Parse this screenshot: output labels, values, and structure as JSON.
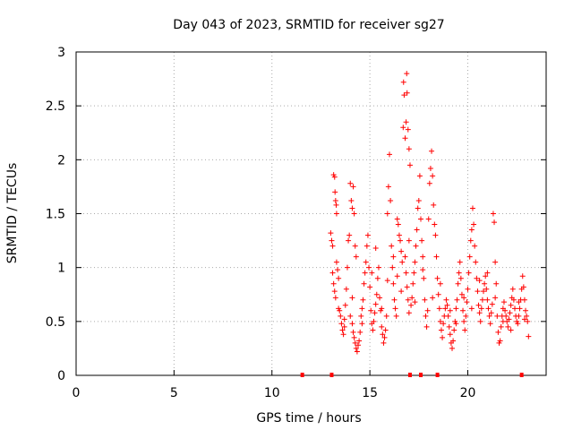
{
  "chart_data": {
    "type": "scatter",
    "title": "Day 043 of 2023, SRMTID for receiver sg27",
    "xlabel": "GPS time / hours",
    "ylabel": "SRMTID / TECUs",
    "xlim": [
      0,
      24
    ],
    "ylim": [
      0,
      3
    ],
    "x_ticks": [
      "0",
      "5",
      "10",
      "15",
      "20"
    ],
    "y_ticks": [
      "0",
      "0.5",
      "1",
      "1.5",
      "2",
      "2.5",
      "3"
    ],
    "grid": true,
    "marker": "+",
    "colors": {
      "series": "#ff0000",
      "grid": "#aaaaaa",
      "axis": "#000000"
    },
    "baseline_marks_x": [
      11.55,
      13.05,
      17.05,
      17.6,
      18.45,
      22.75
    ],
    "series": [
      {
        "name": "SRMTID",
        "points": [
          [
            13.0,
            1.32
          ],
          [
            13.05,
            1.25
          ],
          [
            13.1,
            1.2
          ],
          [
            13.15,
            1.86
          ],
          [
            13.2,
            1.84
          ],
          [
            13.22,
            1.7
          ],
          [
            13.25,
            1.62
          ],
          [
            13.28,
            1.58
          ],
          [
            13.3,
            1.5
          ],
          [
            13.1,
            0.95
          ],
          [
            13.15,
            0.85
          ],
          [
            13.2,
            0.78
          ],
          [
            13.25,
            0.72
          ],
          [
            13.3,
            1.05
          ],
          [
            13.35,
            0.98
          ],
          [
            13.4,
            0.9
          ],
          [
            13.45,
            0.6
          ],
          [
            13.5,
            0.55
          ],
          [
            13.55,
            0.48
          ],
          [
            13.6,
            0.42
          ],
          [
            13.65,
            0.38
          ],
          [
            13.7,
            0.52
          ],
          [
            13.75,
            0.65
          ],
          [
            13.8,
            0.8
          ],
          [
            13.85,
            1.0
          ],
          [
            13.9,
            1.25
          ],
          [
            13.95,
            1.3
          ],
          [
            14.0,
            1.78
          ],
          [
            14.05,
            1.62
          ],
          [
            14.1,
            1.55
          ],
          [
            14.15,
            1.75
          ],
          [
            14.2,
            1.5
          ],
          [
            14.25,
            1.2
          ],
          [
            14.3,
            1.1
          ],
          [
            14.0,
            0.55
          ],
          [
            14.1,
            0.48
          ],
          [
            14.15,
            0.4
          ],
          [
            14.2,
            0.35
          ],
          [
            14.25,
            0.3
          ],
          [
            14.3,
            0.25
          ],
          [
            14.35,
            0.22
          ],
          [
            14.4,
            0.28
          ],
          [
            14.45,
            0.32
          ],
          [
            14.5,
            0.4
          ],
          [
            14.55,
            0.55
          ],
          [
            14.6,
            0.62
          ],
          [
            14.65,
            0.7
          ],
          [
            14.7,
            0.85
          ],
          [
            14.75,
            0.95
          ],
          [
            14.8,
            1.05
          ],
          [
            14.85,
            1.2
          ],
          [
            14.9,
            1.3
          ],
          [
            14.95,
            1.0
          ],
          [
            15.0,
            0.82
          ],
          [
            15.05,
            0.6
          ],
          [
            15.1,
            0.48
          ],
          [
            15.15,
            0.42
          ],
          [
            15.2,
            0.5
          ],
          [
            15.25,
            0.58
          ],
          [
            15.3,
            0.66
          ],
          [
            15.35,
            0.75
          ],
          [
            15.4,
            0.9
          ],
          [
            15.45,
            1.0
          ],
          [
            15.5,
            0.72
          ],
          [
            15.55,
            0.6
          ],
          [
            15.6,
            0.45
          ],
          [
            15.65,
            0.38
          ],
          [
            15.7,
            0.3
          ],
          [
            15.75,
            0.35
          ],
          [
            15.8,
            0.42
          ],
          [
            15.85,
            0.55
          ],
          [
            15.9,
            1.5
          ],
          [
            15.95,
            1.75
          ],
          [
            16.0,
            2.05
          ],
          [
            16.05,
            1.62
          ],
          [
            16.1,
            1.2
          ],
          [
            16.15,
            1.0
          ],
          [
            16.2,
            0.85
          ],
          [
            16.25,
            0.7
          ],
          [
            16.3,
            0.62
          ],
          [
            16.35,
            0.55
          ],
          [
            16.4,
            1.45
          ],
          [
            16.45,
            1.4
          ],
          [
            16.5,
            1.3
          ],
          [
            16.55,
            1.25
          ],
          [
            16.6,
            1.15
          ],
          [
            16.65,
            1.05
          ],
          [
            16.7,
            2.3
          ],
          [
            16.72,
            2.72
          ],
          [
            16.75,
            2.6
          ],
          [
            16.8,
            2.2
          ],
          [
            16.85,
            2.35
          ],
          [
            16.88,
            2.8
          ],
          [
            16.9,
            2.62
          ],
          [
            16.95,
            2.28
          ],
          [
            17.0,
            2.1
          ],
          [
            17.05,
            1.95
          ],
          [
            16.8,
            1.1
          ],
          [
            16.85,
            0.95
          ],
          [
            16.9,
            0.82
          ],
          [
            16.95,
            0.7
          ],
          [
            17.0,
            0.58
          ],
          [
            17.1,
            0.65
          ],
          [
            17.15,
            0.72
          ],
          [
            17.2,
            0.85
          ],
          [
            17.25,
            0.95
          ],
          [
            17.3,
            1.05
          ],
          [
            17.35,
            1.2
          ],
          [
            17.4,
            1.35
          ],
          [
            17.45,
            1.55
          ],
          [
            17.5,
            1.62
          ],
          [
            17.55,
            1.85
          ],
          [
            17.6,
            1.45
          ],
          [
            17.65,
            1.25
          ],
          [
            17.7,
            1.1
          ],
          [
            17.75,
            0.9
          ],
          [
            17.8,
            0.7
          ],
          [
            17.85,
            0.55
          ],
          [
            17.9,
            0.45
          ],
          [
            17.95,
            0.6
          ],
          [
            18.0,
            1.45
          ],
          [
            18.05,
            1.78
          ],
          [
            18.1,
            1.92
          ],
          [
            18.15,
            2.08
          ],
          [
            18.2,
            1.85
          ],
          [
            18.25,
            1.58
          ],
          [
            18.3,
            1.4
          ],
          [
            18.35,
            1.3
          ],
          [
            18.4,
            1.1
          ],
          [
            18.45,
            0.9
          ],
          [
            18.5,
            0.75
          ],
          [
            18.55,
            0.62
          ],
          [
            18.6,
            0.5
          ],
          [
            18.65,
            0.42
          ],
          [
            18.7,
            0.35
          ],
          [
            18.75,
            0.48
          ],
          [
            18.8,
            0.55
          ],
          [
            18.85,
            0.62
          ],
          [
            18.9,
            0.7
          ],
          [
            18.95,
            0.65
          ],
          [
            19.0,
            0.55
          ],
          [
            19.05,
            0.45
          ],
          [
            19.1,
            0.38
          ],
          [
            19.15,
            0.3
          ],
          [
            19.2,
            0.25
          ],
          [
            19.25,
            0.32
          ],
          [
            19.3,
            0.42
          ],
          [
            19.35,
            0.5
          ],
          [
            19.4,
            0.62
          ],
          [
            19.45,
            0.7
          ],
          [
            19.5,
            0.85
          ],
          [
            19.55,
            0.95
          ],
          [
            19.6,
            1.05
          ],
          [
            19.65,
            0.9
          ],
          [
            19.7,
            0.75
          ],
          [
            19.75,
            0.6
          ],
          [
            19.8,
            0.5
          ],
          [
            19.85,
            0.42
          ],
          [
            19.9,
            0.55
          ],
          [
            19.95,
            0.68
          ],
          [
            20.0,
            0.8
          ],
          [
            20.05,
            0.95
          ],
          [
            20.1,
            1.1
          ],
          [
            20.15,
            1.25
          ],
          [
            20.2,
            1.35
          ],
          [
            20.25,
            1.55
          ],
          [
            20.3,
            1.4
          ],
          [
            20.35,
            1.2
          ],
          [
            20.4,
            1.05
          ],
          [
            20.45,
            0.9
          ],
          [
            20.5,
            0.78
          ],
          [
            20.55,
            0.65
          ],
          [
            20.6,
            0.58
          ],
          [
            20.65,
            0.5
          ],
          [
            20.7,
            0.62
          ],
          [
            20.75,
            0.7
          ],
          [
            20.8,
            0.78
          ],
          [
            20.85,
            0.85
          ],
          [
            20.9,
            0.92
          ],
          [
            20.95,
            0.8
          ],
          [
            21.0,
            0.7
          ],
          [
            21.05,
            0.62
          ],
          [
            21.1,
            0.55
          ],
          [
            21.15,
            0.48
          ],
          [
            21.2,
            0.58
          ],
          [
            21.25,
            0.66
          ],
          [
            21.3,
            1.5
          ],
          [
            21.35,
            1.42
          ],
          [
            21.4,
            1.05
          ],
          [
            21.45,
            0.85
          ],
          [
            21.5,
            0.55
          ],
          [
            21.55,
            0.4
          ],
          [
            21.6,
            0.3
          ],
          [
            21.65,
            0.32
          ],
          [
            21.7,
            0.45
          ],
          [
            21.75,
            0.55
          ],
          [
            21.8,
            0.62
          ],
          [
            21.85,
            0.68
          ],
          [
            21.9,
            0.6
          ],
          [
            21.95,
            0.55
          ],
          [
            22.0,
            0.5
          ],
          [
            22.05,
            0.45
          ],
          [
            22.1,
            0.52
          ],
          [
            22.15,
            0.58
          ],
          [
            22.2,
            0.65
          ],
          [
            22.25,
            0.72
          ],
          [
            22.3,
            0.8
          ],
          [
            22.35,
            0.7
          ],
          [
            22.4,
            0.62
          ],
          [
            22.45,
            0.55
          ],
          [
            22.5,
            0.5
          ],
          [
            22.55,
            0.48
          ],
          [
            22.6,
            0.55
          ],
          [
            22.65,
            0.62
          ],
          [
            22.7,
            0.7
          ],
          [
            22.75,
            0.8
          ],
          [
            22.8,
            0.92
          ],
          [
            22.85,
            0.82
          ],
          [
            22.9,
            0.7
          ],
          [
            22.95,
            0.6
          ],
          [
            23.0,
            0.55
          ],
          [
            23.05,
            0.5
          ],
          [
            23.1,
            0.36
          ],
          [
            13.4,
            0.62
          ],
          [
            13.7,
            0.45
          ],
          [
            14.1,
            0.72
          ],
          [
            14.6,
            0.48
          ],
          [
            15.1,
            0.95
          ],
          [
            15.3,
            1.18
          ],
          [
            15.6,
            0.62
          ],
          [
            15.9,
            0.88
          ],
          [
            16.2,
            1.1
          ],
          [
            16.4,
            0.92
          ],
          [
            16.6,
            0.78
          ],
          [
            17.0,
            1.25
          ],
          [
            17.3,
            0.68
          ],
          [
            17.7,
            0.98
          ],
          [
            18.2,
            0.72
          ],
          [
            18.6,
            0.85
          ],
          [
            19.1,
            0.6
          ],
          [
            19.4,
            0.48
          ],
          [
            19.8,
            0.72
          ],
          [
            20.2,
            0.62
          ],
          [
            20.6,
            0.88
          ],
          [
            21.0,
            0.95
          ],
          [
            21.4,
            0.72
          ],
          [
            21.8,
            0.5
          ],
          [
            22.2,
            0.42
          ],
          [
            22.6,
            0.68
          ],
          [
            22.9,
            0.52
          ]
        ]
      }
    ]
  }
}
